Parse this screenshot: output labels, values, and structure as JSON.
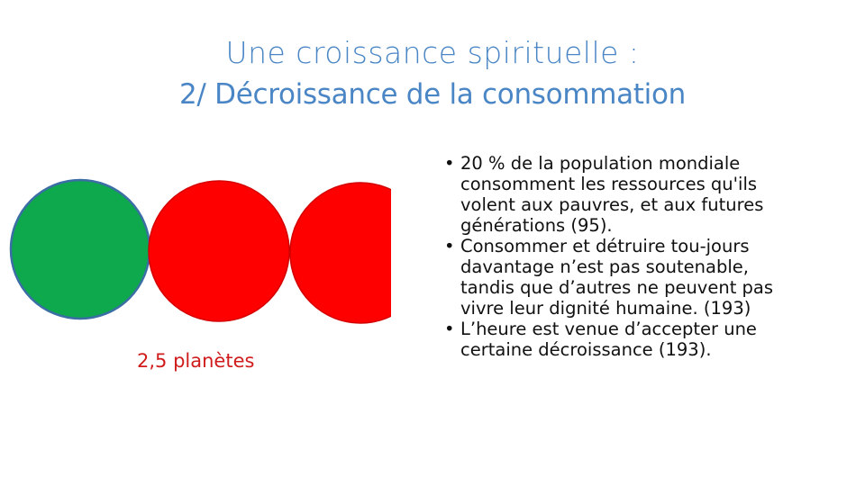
{
  "title": {
    "line1": "Une croissance spirituelle :",
    "line2_prefix": "2/ ",
    "line2_main": "Décroissance de la consommation"
  },
  "planets": {
    "caption": "2,5 planètes",
    "colors": {
      "green": "#0ea84d",
      "red": "#ff0000",
      "outline": "#3b6ea5"
    },
    "count": 2.5
  },
  "bullets": [
    {
      "text": "20 % de la population mondiale consomment les ressources qu'ils volent aux pauvres, et aux futures générations  (95)."
    },
    {
      "text": "Consommer et détruire tou-jours davantage n’est pas soutenable, tandis que d’autres ne peuvent pas vivre leur dignité humaine. (193)"
    },
    {
      "text": "L’heure est venue d’accepter une certaine décroissance  (193)."
    }
  ],
  "bullet_glyph": "•"
}
